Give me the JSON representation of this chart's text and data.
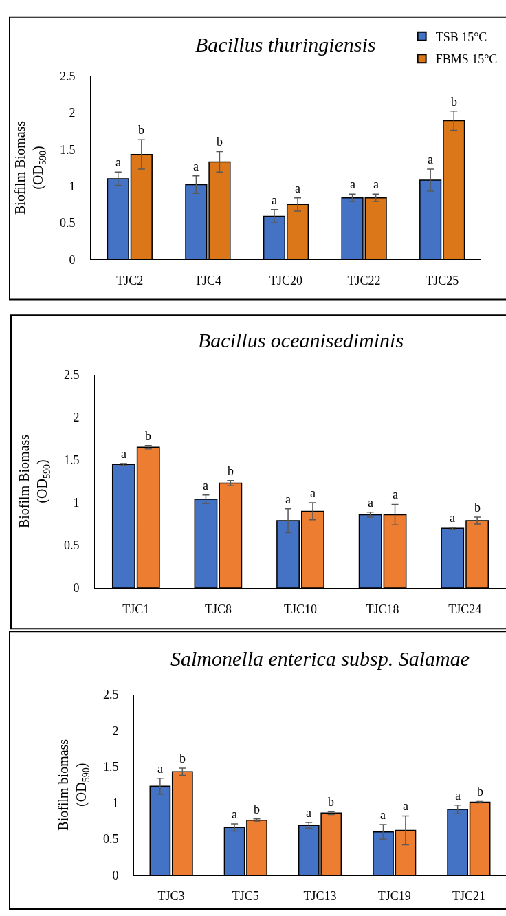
{
  "chart_data": [
    {
      "type": "bar",
      "title": "Bacillus thuringiensis",
      "ylabel": "Biofilm Biomass\n(OD$_{590}$)",
      "categories": [
        "TJC2",
        "TJC4",
        "TJC20",
        "TJC22",
        "TJC25"
      ],
      "ylim": [
        0,
        2.5
      ],
      "yticks": [
        0,
        0.5,
        1,
        1.5,
        2,
        2.5
      ],
      "legend": "top right",
      "series": [
        {
          "name": "TSB 15°C",
          "color": "#4472c4",
          "values": [
            1.1,
            1.02,
            0.59,
            0.84,
            1.08
          ],
          "errors": [
            0.09,
            0.12,
            0.09,
            0.05,
            0.15
          ],
          "value_labels": [
            "a",
            "a",
            "a",
            "a",
            "a"
          ]
        },
        {
          "name": "FBMS 15°C",
          "color": "#dc7719",
          "values": [
            1.43,
            1.33,
            0.75,
            0.84,
            1.89
          ],
          "errors": [
            0.2,
            0.14,
            0.09,
            0.05,
            0.13
          ],
          "value_labels": [
            "b",
            "b",
            "a",
            "a",
            "b"
          ]
        }
      ]
    },
    {
      "type": "bar",
      "title": "Bacillus oceanisediminis",
      "ylabel": "Biofilm Biomass\n(OD$_{590}$)",
      "categories": [
        "TJC1",
        "TJC8",
        "TJC10",
        "TJC18",
        "TJC24"
      ],
      "ylim": [
        0,
        2.5
      ],
      "yticks": [
        0,
        0.5,
        1,
        1.5,
        2,
        2.5
      ],
      "series": [
        {
          "color": "#4472c4",
          "values": [
            1.45,
            1.04,
            0.79,
            0.86,
            0.7
          ],
          "errors": [
            0.01,
            0.05,
            0.14,
            0.03,
            0.01
          ],
          "value_labels": [
            "a",
            "a",
            "a",
            "a",
            "a"
          ]
        },
        {
          "color": "#ed7d31",
          "values": [
            1.65,
            1.23,
            0.9,
            0.86,
            0.79
          ],
          "errors": [
            0.02,
            0.03,
            0.1,
            0.12,
            0.04
          ],
          "value_labels": [
            "b",
            "b",
            "a",
            "a",
            "b"
          ]
        }
      ]
    },
    {
      "type": "bar",
      "title": "Salmonella enterica subsp. Salamae",
      "ylabel": "Biofilm biomass\n(OD$_{590}$)",
      "categories": [
        "TJC3",
        "TJC5",
        "TJC13",
        "TJC19",
        "TJC21"
      ],
      "ylim": [
        0,
        2.5
      ],
      "yticks": [
        0,
        0.5,
        1,
        1.5,
        2,
        2.5
      ],
      "series": [
        {
          "color": "#4472c4",
          "values": [
            1.23,
            0.66,
            0.69,
            0.6,
            0.91
          ],
          "errors": [
            0.11,
            0.05,
            0.04,
            0.1,
            0.06
          ],
          "value_labels": [
            "a",
            "a",
            "a",
            "a",
            "a"
          ]
        },
        {
          "color": "#ed7d31",
          "values": [
            1.43,
            0.76,
            0.86,
            0.62,
            1.01
          ],
          "errors": [
            0.05,
            0.02,
            0.02,
            0.2,
            0.01
          ],
          "value_labels": [
            "b",
            "b",
            "b",
            "a",
            "b"
          ]
        }
      ]
    }
  ]
}
